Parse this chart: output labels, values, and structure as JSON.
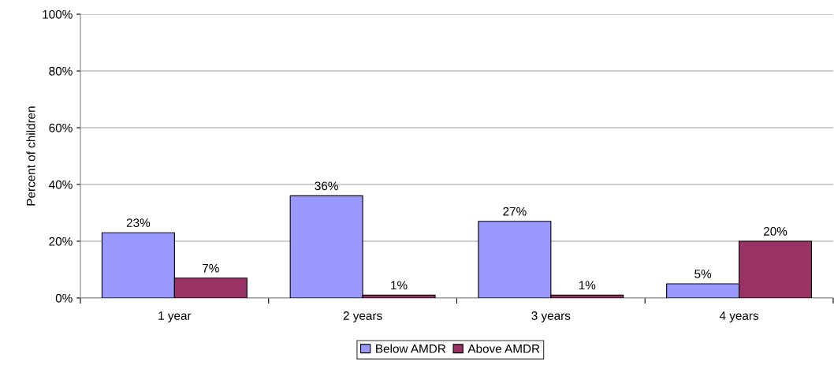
{
  "chart_data": {
    "type": "bar",
    "ylabel": "Percent of children",
    "categories": [
      "1 year",
      "2 years",
      "3 years",
      "4 years"
    ],
    "series": [
      {
        "name": "Below AMDR",
        "color": "#9999ff",
        "values": [
          23,
          36,
          27,
          5
        ],
        "value_labels": [
          "23%",
          "36%",
          "27%",
          "5%"
        ]
      },
      {
        "name": "Above AMDR",
        "color": "#993366",
        "values": [
          7,
          1,
          1,
          20
        ],
        "value_labels": [
          "7%",
          "1%",
          "1%",
          "20%"
        ]
      }
    ],
    "ylim": [
      0,
      100
    ],
    "yticks": [
      {
        "value": 0,
        "label": "0%"
      },
      {
        "value": 20,
        "label": "20%"
      },
      {
        "value": 40,
        "label": "40%"
      },
      {
        "value": 60,
        "label": "60%"
      },
      {
        "value": 80,
        "label": "80%"
      },
      {
        "value": 100,
        "label": "100%"
      }
    ],
    "grid": "y",
    "legend": "bottom"
  }
}
